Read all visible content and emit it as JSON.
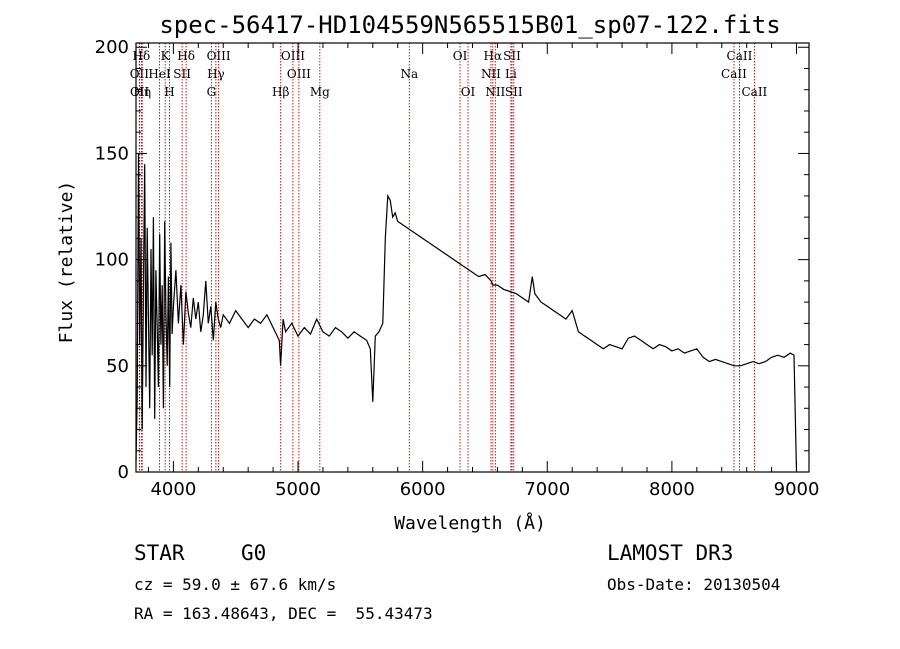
{
  "chart_data": {
    "type": "line",
    "title": "spec-56417-HD104559N565515B01_sp07-122.fits",
    "xlabel": "Wavelength (Å)",
    "ylabel": "Flux (relative)",
    "xlim": [
      3700,
      9100
    ],
    "ylim": [
      0,
      202
    ],
    "xticks": [
      4000,
      5000,
      6000,
      7000,
      8000,
      9000
    ],
    "yticks": [
      0,
      50,
      100,
      150,
      200
    ],
    "grid": false,
    "series": [
      {
        "name": "flux",
        "x": [
          3700,
          3710,
          3720,
          3730,
          3740,
          3750,
          3760,
          3770,
          3780,
          3790,
          3800,
          3810,
          3820,
          3830,
          3840,
          3850,
          3860,
          3870,
          3880,
          3890,
          3900,
          3910,
          3920,
          3930,
          3940,
          3950,
          3960,
          3970,
          3980,
          3990,
          4000,
          4020,
          4040,
          4060,
          4080,
          4100,
          4120,
          4140,
          4160,
          4180,
          4200,
          4220,
          4240,
          4260,
          4280,
          4300,
          4320,
          4340,
          4360,
          4380,
          4400,
          4450,
          4500,
          4550,
          4600,
          4650,
          4700,
          4750,
          4800,
          4850,
          4860,
          4880,
          4900,
          4950,
          5000,
          5050,
          5100,
          5150,
          5200,
          5250,
          5300,
          5350,
          5400,
          5450,
          5500,
          5550,
          5580,
          5600,
          5620,
          5650,
          5680,
          5700,
          5720,
          5740,
          5760,
          5780,
          5800,
          5850,
          5900,
          5950,
          6000,
          6050,
          6100,
          6150,
          6200,
          6250,
          6300,
          6350,
          6400,
          6450,
          6500,
          6550,
          6563,
          6600,
          6650,
          6700,
          6750,
          6800,
          6850,
          6880,
          6900,
          6950,
          7000,
          7050,
          7100,
          7150,
          7200,
          7250,
          7300,
          7350,
          7400,
          7450,
          7500,
          7550,
          7600,
          7650,
          7700,
          7750,
          7800,
          7850,
          7900,
          7950,
          8000,
          8050,
          8100,
          8150,
          8200,
          8250,
          8300,
          8350,
          8400,
          8450,
          8500,
          8550,
          8600,
          8650,
          8700,
          8750,
          8800,
          8850,
          8900,
          8950,
          8980,
          9000
        ],
        "values": [
          5,
          35,
          150,
          60,
          110,
          20,
          90,
          145,
          40,
          115,
          70,
          30,
          105,
          55,
          120,
          25,
          95,
          68,
          40,
          112,
          60,
          88,
          30,
          118,
          75,
          50,
          92,
          40,
          108,
          65,
          78,
          95,
          70,
          88,
          60,
          85,
          75,
          68,
          82,
          72,
          80,
          66,
          74,
          90,
          70,
          78,
          62,
          80,
          72,
          68,
          74,
          70,
          76,
          72,
          68,
          72,
          70,
          74,
          68,
          62,
          50,
          72,
          66,
          70,
          64,
          68,
          65,
          72,
          66,
          64,
          68,
          66,
          63,
          66,
          64,
          62,
          58,
          33,
          64,
          66,
          70,
          110,
          130,
          128,
          120,
          122,
          118,
          116,
          114,
          112,
          110,
          108,
          106,
          104,
          102,
          100,
          98,
          96,
          94,
          92,
          93,
          90,
          88,
          88,
          86,
          85,
          84,
          82,
          80,
          92,
          84,
          80,
          78,
          76,
          74,
          72,
          76,
          66,
          64,
          62,
          60,
          58,
          60,
          59,
          58,
          63,
          64,
          62,
          60,
          58,
          60,
          59,
          57,
          58,
          56,
          57,
          58,
          54,
          52,
          53,
          52,
          51,
          50,
          50,
          51,
          52,
          51,
          52,
          54,
          55,
          54,
          56,
          55,
          0
        ]
      }
    ],
    "line_marks": [
      {
        "label": "Hδ",
        "x": 3743,
        "row": 0
      },
      {
        "label": "OII",
        "x": 3727,
        "row": 1
      },
      {
        "label": "OII",
        "x": 3729,
        "row": 2
      },
      {
        "label": "Hη",
        "x": 3750,
        "row": 2
      },
      {
        "label": "K",
        "x": 3934,
        "row": 0
      },
      {
        "label": "HeI",
        "x": 3889,
        "row": 1
      },
      {
        "label": "H",
        "x": 3969,
        "row": 2
      },
      {
        "label": "SII",
        "x": 4070,
        "row": 1
      },
      {
        "label": "Hδ",
        "x": 4102,
        "row": 0
      },
      {
        "label": "OIII",
        "x": 4363,
        "row": 0
      },
      {
        "label": "Hγ",
        "x": 4341,
        "row": 1
      },
      {
        "label": "G",
        "x": 4305,
        "row": 2
      },
      {
        "label": "OIII",
        "x": 4959,
        "row": 0
      },
      {
        "label": "OIII",
        "x": 5007,
        "row": 1
      },
      {
        "label": "Hβ",
        "x": 4861,
        "row": 2
      },
      {
        "label": "Mg",
        "x": 5175,
        "row": 2
      },
      {
        "label": "Na",
        "x": 5893,
        "row": 1
      },
      {
        "label": "OI",
        "x": 6300,
        "row": 0
      },
      {
        "label": "OI",
        "x": 6364,
        "row": 2
      },
      {
        "label": "Hα",
        "x": 6563,
        "row": 0
      },
      {
        "label": "SII",
        "x": 6717,
        "row": 0
      },
      {
        "label": "NII",
        "x": 6548,
        "row": 1
      },
      {
        "label": "Li",
        "x": 6708,
        "row": 1
      },
      {
        "label": "NII",
        "x": 6583,
        "row": 2
      },
      {
        "label": "SII",
        "x": 6731,
        "row": 2
      },
      {
        "label": "CaII",
        "x": 8542,
        "row": 0
      },
      {
        "label": "CaII",
        "x": 8498,
        "row": 1
      },
      {
        "label": "CaII",
        "x": 8662,
        "row": 2
      }
    ],
    "line_color": "#c00000"
  },
  "info": {
    "object_class": "STAR",
    "subclass": "G0",
    "survey": "LAMOST DR3",
    "cz": "cz = 59.0 ± 67.6 km/s",
    "obs_date": "Obs-Date: 20130504",
    "radec": "RA = 163.48643, DEC =  55.43473"
  }
}
